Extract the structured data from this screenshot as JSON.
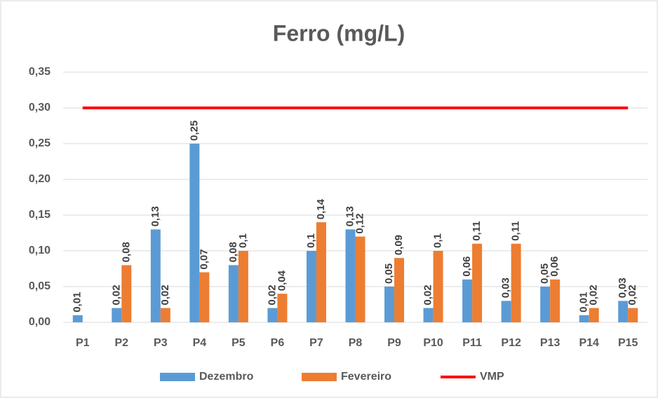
{
  "chart_data": {
    "type": "bar",
    "title": "Ferro (mg/L)",
    "categories": [
      "P1",
      "P2",
      "P3",
      "P4",
      "P5",
      "P6",
      "P7",
      "P8",
      "P9",
      "P10",
      "P11",
      "P12",
      "P13",
      "P14",
      "P15"
    ],
    "series": [
      {
        "name": "Dezembro",
        "color": "#5b9bd5",
        "values": [
          0.01,
          0.02,
          0.13,
          0.25,
          0.08,
          0.02,
          0.1,
          0.13,
          0.05,
          0.02,
          0.06,
          0.03,
          0.05,
          0.01,
          0.03
        ],
        "value_labels": [
          "0,01",
          "0,02",
          "0,13",
          "0,25",
          "0,08",
          "0,02",
          "0,1",
          "0,13",
          "0,05",
          "0,02",
          "0,06",
          "0,03",
          "0,05",
          "0,01",
          "0,03"
        ]
      },
      {
        "name": "Fevereiro",
        "color": "#ed7d31",
        "values": [
          null,
          0.08,
          0.02,
          0.07,
          0.1,
          0.04,
          0.14,
          0.12,
          0.09,
          0.1,
          0.11,
          0.11,
          0.06,
          0.02,
          0.02
        ],
        "value_labels": [
          null,
          "0,08",
          "0,02",
          "0,07",
          "0,1",
          "0,04",
          "0,14",
          "0,12",
          "0,09",
          "0,1",
          "0,11",
          "0,11",
          "0,06",
          "0,02",
          "0,02"
        ]
      },
      {
        "name": "VMP",
        "color": "#ff0000",
        "type": "line",
        "values": [
          0.3,
          0.3,
          0.3,
          0.3,
          0.3,
          0.3,
          0.3,
          0.3,
          0.3,
          0.3,
          0.3,
          0.3,
          0.3,
          0.3,
          0.3
        ]
      }
    ],
    "ylim": [
      0,
      0.35
    ],
    "yticks": [
      {
        "value": 0,
        "label": "0,00"
      },
      {
        "value": 0.05,
        "label": "0,05"
      },
      {
        "value": 0.1,
        "label": "0,10"
      },
      {
        "value": 0.15,
        "label": "0,15"
      },
      {
        "value": 0.2,
        "label": "0,20"
      },
      {
        "value": 0.25,
        "label": "0,25"
      },
      {
        "value": 0.3,
        "label": "0,30"
      },
      {
        "value": 0.35,
        "label": "0,35"
      }
    ],
    "grid": true,
    "legend": "bottom"
  }
}
